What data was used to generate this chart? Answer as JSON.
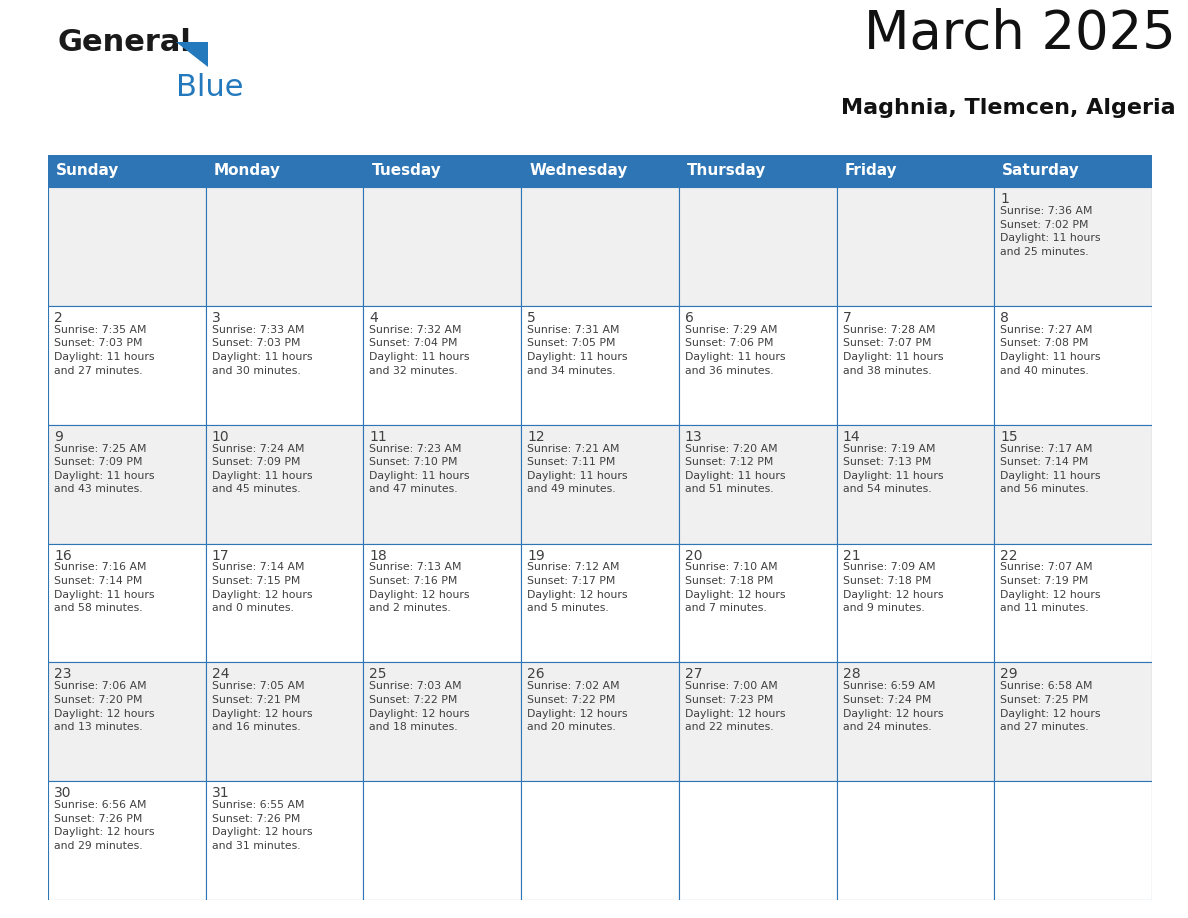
{
  "title": "March 2025",
  "subtitle": "Maghnia, Tlemcen, Algeria",
  "header_color": "#2E75B6",
  "header_text_color": "#FFFFFF",
  "days_of_week": [
    "Sunday",
    "Monday",
    "Tuesday",
    "Wednesday",
    "Thursday",
    "Friday",
    "Saturday"
  ],
  "cell_bg_white": "#FFFFFF",
  "cell_bg_gray": "#F0F0F0",
  "border_color": "#2E75B6",
  "text_color": "#404040",
  "calendar": [
    [
      {
        "day": null,
        "info": ""
      },
      {
        "day": null,
        "info": ""
      },
      {
        "day": null,
        "info": ""
      },
      {
        "day": null,
        "info": ""
      },
      {
        "day": null,
        "info": ""
      },
      {
        "day": null,
        "info": ""
      },
      {
        "day": 1,
        "info": "Sunrise: 7:36 AM\nSunset: 7:02 PM\nDaylight: 11 hours\nand 25 minutes."
      }
    ],
    [
      {
        "day": 2,
        "info": "Sunrise: 7:35 AM\nSunset: 7:03 PM\nDaylight: 11 hours\nand 27 minutes."
      },
      {
        "day": 3,
        "info": "Sunrise: 7:33 AM\nSunset: 7:03 PM\nDaylight: 11 hours\nand 30 minutes."
      },
      {
        "day": 4,
        "info": "Sunrise: 7:32 AM\nSunset: 7:04 PM\nDaylight: 11 hours\nand 32 minutes."
      },
      {
        "day": 5,
        "info": "Sunrise: 7:31 AM\nSunset: 7:05 PM\nDaylight: 11 hours\nand 34 minutes."
      },
      {
        "day": 6,
        "info": "Sunrise: 7:29 AM\nSunset: 7:06 PM\nDaylight: 11 hours\nand 36 minutes."
      },
      {
        "day": 7,
        "info": "Sunrise: 7:28 AM\nSunset: 7:07 PM\nDaylight: 11 hours\nand 38 minutes."
      },
      {
        "day": 8,
        "info": "Sunrise: 7:27 AM\nSunset: 7:08 PM\nDaylight: 11 hours\nand 40 minutes."
      }
    ],
    [
      {
        "day": 9,
        "info": "Sunrise: 7:25 AM\nSunset: 7:09 PM\nDaylight: 11 hours\nand 43 minutes."
      },
      {
        "day": 10,
        "info": "Sunrise: 7:24 AM\nSunset: 7:09 PM\nDaylight: 11 hours\nand 45 minutes."
      },
      {
        "day": 11,
        "info": "Sunrise: 7:23 AM\nSunset: 7:10 PM\nDaylight: 11 hours\nand 47 minutes."
      },
      {
        "day": 12,
        "info": "Sunrise: 7:21 AM\nSunset: 7:11 PM\nDaylight: 11 hours\nand 49 minutes."
      },
      {
        "day": 13,
        "info": "Sunrise: 7:20 AM\nSunset: 7:12 PM\nDaylight: 11 hours\nand 51 minutes."
      },
      {
        "day": 14,
        "info": "Sunrise: 7:19 AM\nSunset: 7:13 PM\nDaylight: 11 hours\nand 54 minutes."
      },
      {
        "day": 15,
        "info": "Sunrise: 7:17 AM\nSunset: 7:14 PM\nDaylight: 11 hours\nand 56 minutes."
      }
    ],
    [
      {
        "day": 16,
        "info": "Sunrise: 7:16 AM\nSunset: 7:14 PM\nDaylight: 11 hours\nand 58 minutes."
      },
      {
        "day": 17,
        "info": "Sunrise: 7:14 AM\nSunset: 7:15 PM\nDaylight: 12 hours\nand 0 minutes."
      },
      {
        "day": 18,
        "info": "Sunrise: 7:13 AM\nSunset: 7:16 PM\nDaylight: 12 hours\nand 2 minutes."
      },
      {
        "day": 19,
        "info": "Sunrise: 7:12 AM\nSunset: 7:17 PM\nDaylight: 12 hours\nand 5 minutes."
      },
      {
        "day": 20,
        "info": "Sunrise: 7:10 AM\nSunset: 7:18 PM\nDaylight: 12 hours\nand 7 minutes."
      },
      {
        "day": 21,
        "info": "Sunrise: 7:09 AM\nSunset: 7:18 PM\nDaylight: 12 hours\nand 9 minutes."
      },
      {
        "day": 22,
        "info": "Sunrise: 7:07 AM\nSunset: 7:19 PM\nDaylight: 12 hours\nand 11 minutes."
      }
    ],
    [
      {
        "day": 23,
        "info": "Sunrise: 7:06 AM\nSunset: 7:20 PM\nDaylight: 12 hours\nand 13 minutes."
      },
      {
        "day": 24,
        "info": "Sunrise: 7:05 AM\nSunset: 7:21 PM\nDaylight: 12 hours\nand 16 minutes."
      },
      {
        "day": 25,
        "info": "Sunrise: 7:03 AM\nSunset: 7:22 PM\nDaylight: 12 hours\nand 18 minutes."
      },
      {
        "day": 26,
        "info": "Sunrise: 7:02 AM\nSunset: 7:22 PM\nDaylight: 12 hours\nand 20 minutes."
      },
      {
        "day": 27,
        "info": "Sunrise: 7:00 AM\nSunset: 7:23 PM\nDaylight: 12 hours\nand 22 minutes."
      },
      {
        "day": 28,
        "info": "Sunrise: 6:59 AM\nSunset: 7:24 PM\nDaylight: 12 hours\nand 24 minutes."
      },
      {
        "day": 29,
        "info": "Sunrise: 6:58 AM\nSunset: 7:25 PM\nDaylight: 12 hours\nand 27 minutes."
      }
    ],
    [
      {
        "day": 30,
        "info": "Sunrise: 6:56 AM\nSunset: 7:26 PM\nDaylight: 12 hours\nand 29 minutes."
      },
      {
        "day": 31,
        "info": "Sunrise: 6:55 AM\nSunset: 7:26 PM\nDaylight: 12 hours\nand 31 minutes."
      },
      {
        "day": null,
        "info": ""
      },
      {
        "day": null,
        "info": ""
      },
      {
        "day": null,
        "info": ""
      },
      {
        "day": null,
        "info": ""
      },
      {
        "day": null,
        "info": ""
      }
    ]
  ],
  "logo_color_general": "#1a1a1a",
  "logo_color_blue": "#2479BD",
  "title_fontsize": 38,
  "subtitle_fontsize": 16,
  "header_fontsize": 11,
  "day_num_fontsize": 10,
  "info_fontsize": 7.8
}
